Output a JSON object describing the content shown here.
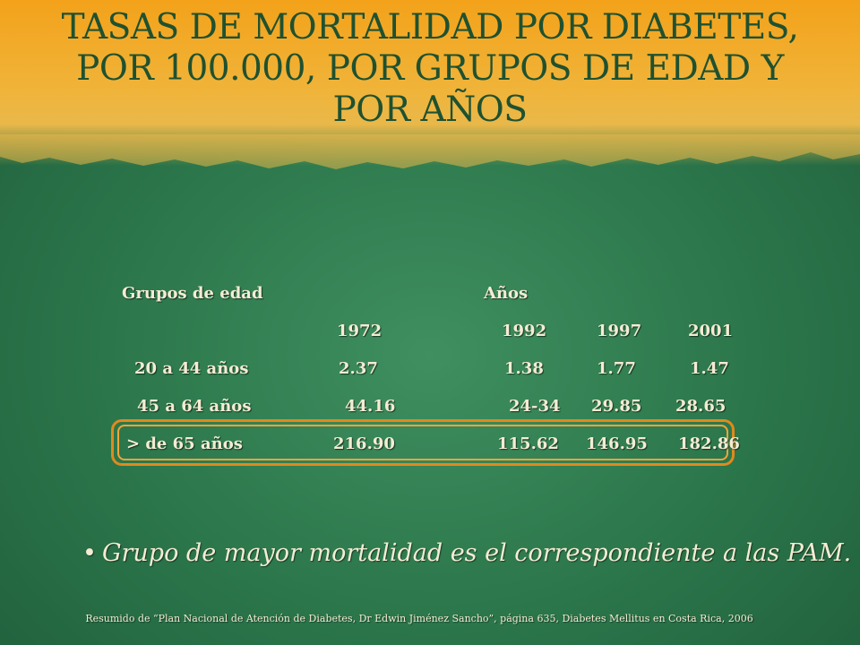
{
  "slide": {
    "title": "TASAS DE MORTALIDAD POR DIABETES, POR 100.000, POR GRUPOS DE EDAD Y POR AÑOS",
    "table": {
      "group_header": "Grupos de edad",
      "years_header": "Años",
      "years": [
        "1972",
        "1992",
        "1997",
        "2001"
      ],
      "rows": [
        {
          "group": "20 a 44 años",
          "values": [
            "2.37",
            "1.38",
            "1.77",
            "1.47"
          ]
        },
        {
          "group": "45 a 64 años",
          "values": [
            "44.16",
            "24-34",
            "29.85",
            "28.65"
          ]
        },
        {
          "group": "> de 65 años",
          "values": [
            "216.90",
            "115.62",
            "146.95",
            "182.86"
          ]
        }
      ]
    },
    "bullet": "Grupo de mayor mortalidad es el correspondiente a las PAM.",
    "footnote": "Resumido de “Plan Nacional de Atención de Diabetes, Dr Edwin Jiménez Sancho”, página 635, Diabetes Mellitus en Costa Rica, 2006",
    "colors": {
      "title": "#1f5130",
      "text": "#f4ecd3",
      "highlight": "#e08a1e"
    }
  }
}
